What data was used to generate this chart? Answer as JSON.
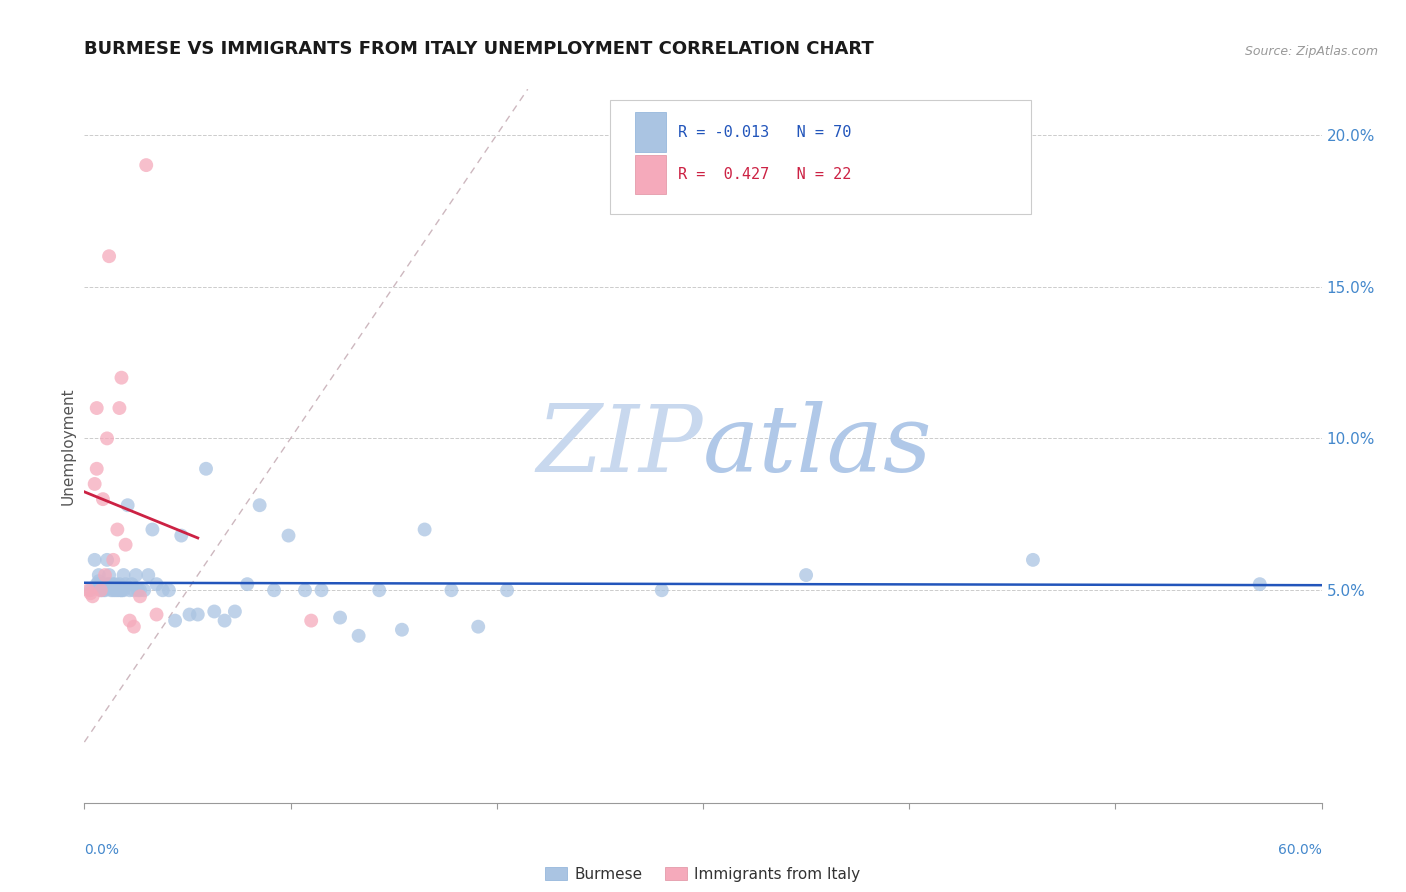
{
  "title": "BURMESE VS IMMIGRANTS FROM ITALY UNEMPLOYMENT CORRELATION CHART",
  "source": "Source: ZipAtlas.com",
  "ylabel": "Unemployment",
  "xlim": [
    0.0,
    0.6
  ],
  "ylim": [
    -0.02,
    0.215
  ],
  "burmese_R": "-0.013",
  "burmese_N": "70",
  "italy_R": "0.427",
  "italy_N": "22",
  "burmese_color": "#aac4e2",
  "italy_color": "#f5aabb",
  "trend_burmese_color": "#2255bb",
  "trend_italy_color": "#cc2244",
  "diagonal_color": "#c8b0b8",
  "watermark_zip_color": "#c8d8ee",
  "watermark_atlas_color": "#b0c8e8",
  "background_color": "#ffffff",
  "grid_color": "#cccccc",
  "axis_label_color": "#4488cc",
  "burmese_x": [
    0.003,
    0.005,
    0.006,
    0.007,
    0.007,
    0.008,
    0.008,
    0.008,
    0.009,
    0.009,
    0.01,
    0.01,
    0.011,
    0.011,
    0.012,
    0.012,
    0.013,
    0.013,
    0.014,
    0.014,
    0.015,
    0.015,
    0.016,
    0.016,
    0.017,
    0.017,
    0.018,
    0.018,
    0.019,
    0.019,
    0.02,
    0.021,
    0.022,
    0.023,
    0.024,
    0.025,
    0.026,
    0.027,
    0.029,
    0.031,
    0.033,
    0.035,
    0.038,
    0.041,
    0.044,
    0.047,
    0.051,
    0.055,
    0.059,
    0.063,
    0.068,
    0.073,
    0.079,
    0.085,
    0.092,
    0.099,
    0.107,
    0.115,
    0.124,
    0.133,
    0.143,
    0.154,
    0.165,
    0.178,
    0.191,
    0.205,
    0.28,
    0.35,
    0.46,
    0.57
  ],
  "burmese_y": [
    0.05,
    0.06,
    0.052,
    0.053,
    0.055,
    0.051,
    0.052,
    0.05,
    0.05,
    0.052,
    0.05,
    0.051,
    0.052,
    0.06,
    0.052,
    0.055,
    0.051,
    0.05,
    0.05,
    0.052,
    0.052,
    0.05,
    0.05,
    0.051,
    0.05,
    0.052,
    0.05,
    0.05,
    0.055,
    0.05,
    0.052,
    0.078,
    0.05,
    0.052,
    0.05,
    0.055,
    0.05,
    0.05,
    0.05,
    0.055,
    0.07,
    0.052,
    0.05,
    0.05,
    0.04,
    0.068,
    0.042,
    0.042,
    0.09,
    0.043,
    0.04,
    0.043,
    0.052,
    0.078,
    0.05,
    0.068,
    0.05,
    0.05,
    0.041,
    0.035,
    0.05,
    0.037,
    0.07,
    0.05,
    0.038,
    0.05,
    0.05,
    0.055,
    0.06,
    0.052
  ],
  "italy_x": [
    0.002,
    0.003,
    0.004,
    0.005,
    0.006,
    0.006,
    0.008,
    0.009,
    0.01,
    0.011,
    0.012,
    0.014,
    0.016,
    0.017,
    0.018,
    0.02,
    0.022,
    0.024,
    0.027,
    0.03,
    0.035,
    0.11
  ],
  "italy_y": [
    0.05,
    0.049,
    0.048,
    0.085,
    0.09,
    0.11,
    0.05,
    0.08,
    0.055,
    0.1,
    0.16,
    0.06,
    0.07,
    0.11,
    0.12,
    0.065,
    0.04,
    0.038,
    0.048,
    0.19,
    0.042,
    0.04
  ],
  "legend_burmese_label": "Burmese",
  "legend_italy_label": "Immigrants from Italy"
}
